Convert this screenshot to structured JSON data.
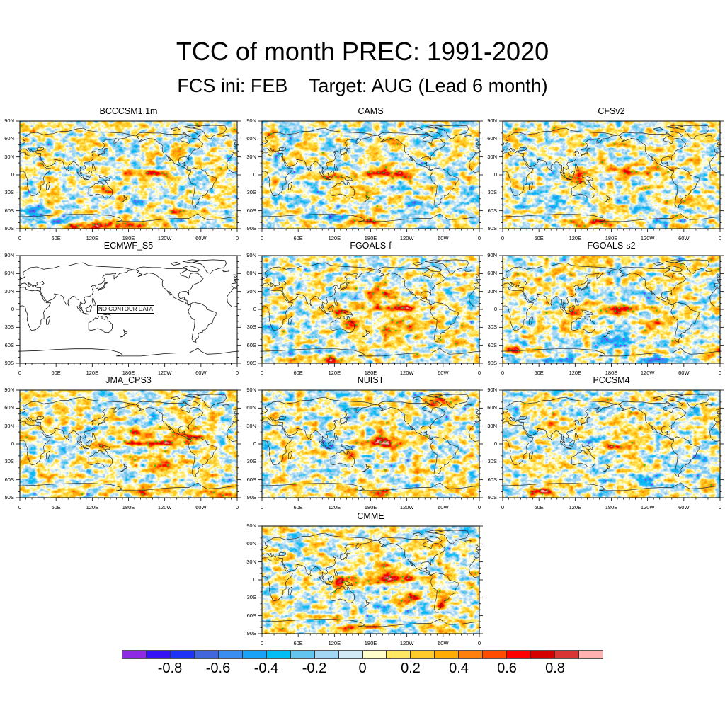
{
  "figure": {
    "title": "TCC of month PREC: 1991-2020",
    "subtitle": "FCS ini: FEB    Target: AUG (Lead 6 month)"
  },
  "chart_data": {
    "type": "heatmap",
    "title": "TCC of month PREC: 1991-2020",
    "subtitle": "FCS ini: FEB    Target: AUG (Lead 6 month)",
    "xlabel": "",
    "ylabel": "",
    "xlim": [
      0,
      360
    ],
    "ylim": [
      -90,
      90
    ],
    "x_ticks": [
      "0",
      "60E",
      "120E",
      "180E",
      "120W",
      "60W",
      "0"
    ],
    "x_tick_values": [
      0,
      60,
      120,
      180,
      240,
      300,
      360
    ],
    "y_ticks": [
      "90N",
      "60N",
      "30N",
      "0",
      "30S",
      "60S",
      "90S"
    ],
    "y_tick_values": [
      90,
      60,
      30,
      0,
      -30,
      -60,
      -90
    ],
    "grid": false,
    "colorbar": {
      "range": [
        -1.0,
        1.0
      ],
      "step": 0.1,
      "placement": "bottom",
      "colors": [
        "#8e2ae3",
        "#3613f5",
        "#1f33f7",
        "#4466dd",
        "#3a8ef0",
        "#1aa3f6",
        "#02bdf4",
        "#63c5ef",
        "#a3d6f2",
        "#d2eaf8",
        "#fffdca",
        "#fee863",
        "#fecb2a",
        "#ffac04",
        "#ff800c",
        "#ff4c02",
        "#fe0000",
        "#d40000",
        "#d93535",
        "#ffb1b1"
      ],
      "labels": [
        "-0.8",
        "-0.6",
        "-0.4",
        "-0.2",
        "0",
        "0.2",
        "0.4",
        "0.6",
        "0.8"
      ],
      "label_values": [
        -0.8,
        -0.6,
        -0.4,
        -0.2,
        0,
        0.2,
        0.4,
        0.6,
        0.8
      ]
    },
    "markers": {
      "positive_significant_color": "#1fc81f",
      "negative_significant_color": "#9b30ff"
    },
    "panels": [
      {
        "name": "BCCCSM1.1m",
        "no_data": false,
        "features": [
          {
            "lon": 205,
            "lat": 3,
            "value": 0.55,
            "dlon": 28,
            "dlat": 4
          },
          {
            "lon": 125,
            "lat": -85,
            "value": 0.65,
            "dlon": 35,
            "dlat": 5
          },
          {
            "lon": 200,
            "lat": -85,
            "value": 0.4,
            "dlon": 40,
            "dlat": 4
          },
          {
            "lon": 280,
            "lat": -62,
            "value": 0.4,
            "dlon": 25,
            "dlat": 6
          },
          {
            "lon": 150,
            "lat": -22,
            "value": 0.35,
            "dlon": 10,
            "dlat": 8
          },
          {
            "lon": 25,
            "lat": -60,
            "value": -0.5,
            "dlon": 15,
            "dlat": 6
          },
          {
            "lon": 195,
            "lat": -45,
            "value": -0.35,
            "dlon": 10,
            "dlat": 6
          },
          {
            "lon": 55,
            "lat": -78,
            "value": -0.35,
            "dlon": 20,
            "dlat": 4
          }
        ]
      },
      {
        "name": "CAMS",
        "no_data": false,
        "features": [
          {
            "lon": 212,
            "lat": 2,
            "value": 0.7,
            "dlon": 32,
            "dlat": 4
          },
          {
            "lon": 115,
            "lat": -2,
            "value": 0.45,
            "dlon": 18,
            "dlat": 5
          },
          {
            "lon": 175,
            "lat": -78,
            "value": 0.5,
            "dlon": 30,
            "dlat": 5
          },
          {
            "lon": 12,
            "lat": 68,
            "value": 0.5,
            "dlon": 8,
            "dlat": 5
          },
          {
            "lon": 250,
            "lat": -48,
            "value": -0.45,
            "dlon": 15,
            "dlat": 4
          },
          {
            "lon": 110,
            "lat": -72,
            "value": -0.4,
            "dlon": 30,
            "dlat": 4
          },
          {
            "lon": 200,
            "lat": -72,
            "value": -0.3,
            "dlon": 20,
            "dlat": 4
          }
        ]
      },
      {
        "name": "CFSv2",
        "no_data": false,
        "features": [
          {
            "lon": 195,
            "lat": 5,
            "value": 0.4,
            "dlon": 35,
            "dlat": 5
          },
          {
            "lon": 125,
            "lat": -5,
            "value": 0.55,
            "dlon": 10,
            "dlat": 6
          },
          {
            "lon": 165,
            "lat": -80,
            "value": 0.45,
            "dlon": 35,
            "dlat": 5
          },
          {
            "lon": 295,
            "lat": -42,
            "value": 0.4,
            "dlon": 18,
            "dlat": 6
          },
          {
            "lon": 220,
            "lat": 17,
            "value": 0.35,
            "dlon": 20,
            "dlat": 4
          },
          {
            "lon": 230,
            "lat": -55,
            "value": -0.35,
            "dlon": 15,
            "dlat": 5
          },
          {
            "lon": 100,
            "lat": -40,
            "value": -0.3,
            "dlon": 20,
            "dlat": 6
          }
        ]
      },
      {
        "name": "ECMWF_S5",
        "no_data": true,
        "message": "NO CONTOUR DATA",
        "features": []
      },
      {
        "name": "FGOALS-f",
        "no_data": false,
        "features": [
          {
            "lon": 225,
            "lat": 2,
            "value": 0.75,
            "dlon": 28,
            "dlat": 4
          },
          {
            "lon": 150,
            "lat": -25,
            "value": 0.5,
            "dlon": 8,
            "dlat": 7
          },
          {
            "lon": 100,
            "lat": -85,
            "value": 0.55,
            "dlon": 35,
            "dlat": 4
          },
          {
            "lon": 200,
            "lat": 22,
            "value": 0.4,
            "dlon": 18,
            "dlat": 10
          },
          {
            "lon": 125,
            "lat": -3,
            "value": 0.4,
            "dlon": 12,
            "dlat": 5
          },
          {
            "lon": 220,
            "lat": -30,
            "value": 0.3,
            "dlon": 30,
            "dlat": 10
          },
          {
            "lon": 60,
            "lat": -72,
            "value": -0.35,
            "dlon": 25,
            "dlat": 4
          }
        ]
      },
      {
        "name": "FGOALS-s2",
        "no_data": false,
        "features": [
          {
            "lon": 195,
            "lat": 0,
            "value": 0.55,
            "dlon": 22,
            "dlat": 6
          },
          {
            "lon": 125,
            "lat": -2,
            "value": 0.45,
            "dlon": 12,
            "dlat": 6
          },
          {
            "lon": 245,
            "lat": -22,
            "value": 0.45,
            "dlon": 12,
            "dlat": 5
          },
          {
            "lon": 25,
            "lat": -68,
            "value": 0.45,
            "dlon": 25,
            "dlat": 4
          },
          {
            "lon": 270,
            "lat": -84,
            "value": -0.5,
            "dlon": 25,
            "dlat": 4
          },
          {
            "lon": 100,
            "lat": -85,
            "value": -0.4,
            "dlon": 25,
            "dlat": 3
          },
          {
            "lon": 180,
            "lat": -50,
            "value": -0.3,
            "dlon": 25,
            "dlat": 6
          }
        ]
      },
      {
        "name": "JMA_CPS3",
        "no_data": false,
        "features": [
          {
            "lon": 222,
            "lat": 1,
            "value": 0.85,
            "dlon": 32,
            "dlat": 3
          },
          {
            "lon": 128,
            "lat": -3,
            "value": 0.6,
            "dlon": 9,
            "dlat": 5
          },
          {
            "lon": 200,
            "lat": 18,
            "value": 0.4,
            "dlon": 20,
            "dlat": 6
          },
          {
            "lon": 275,
            "lat": 12,
            "value": 0.35,
            "dlon": 30,
            "dlat": 7
          },
          {
            "lon": 190,
            "lat": -80,
            "value": 0.4,
            "dlon": 40,
            "dlat": 5
          },
          {
            "lon": 320,
            "lat": -80,
            "value": 0.35,
            "dlon": 25,
            "dlat": 5
          },
          {
            "lon": 240,
            "lat": -35,
            "value": 0.3,
            "dlon": 20,
            "dlat": 8
          }
        ]
      },
      {
        "name": "NUIST",
        "no_data": false,
        "features": [
          {
            "lon": 205,
            "lat": 2,
            "value": 0.75,
            "dlon": 28,
            "dlat": 5
          },
          {
            "lon": 195,
            "lat": 18,
            "value": 0.45,
            "dlon": 6,
            "dlat": 6
          },
          {
            "lon": 150,
            "lat": -20,
            "value": 0.35,
            "dlon": 10,
            "dlat": 8
          },
          {
            "lon": 300,
            "lat": 70,
            "value": 0.45,
            "dlon": 15,
            "dlat": 6
          },
          {
            "lon": 190,
            "lat": -80,
            "value": 0.45,
            "dlon": 30,
            "dlat": 5
          },
          {
            "lon": 65,
            "lat": -65,
            "value": 0.35,
            "dlon": 15,
            "dlat": 4
          },
          {
            "lon": 120,
            "lat": 0,
            "value": -0.35,
            "dlon": 15,
            "dlat": 8
          },
          {
            "lon": 240,
            "lat": -75,
            "value": -0.3,
            "dlon": 25,
            "dlat": 4
          }
        ]
      },
      {
        "name": "PCCSM4",
        "no_data": false,
        "features": [
          {
            "lon": 185,
            "lat": -5,
            "value": 0.45,
            "dlon": 22,
            "dlat": 3
          },
          {
            "lon": 65,
            "lat": -80,
            "value": 0.75,
            "dlon": 12,
            "dlat": 4
          },
          {
            "lon": 80,
            "lat": 42,
            "value": 0.4,
            "dlon": 7,
            "dlat": 5
          },
          {
            "lon": 132,
            "lat": 37,
            "value": 0.45,
            "dlon": 4,
            "dlat": 4
          },
          {
            "lon": 145,
            "lat": 5,
            "value": -0.45,
            "dlon": 12,
            "dlat": 6
          },
          {
            "lon": 330,
            "lat": -25,
            "value": -0.3,
            "dlon": 15,
            "dlat": 10
          },
          {
            "lon": 240,
            "lat": -60,
            "value": -0.35,
            "dlon": 20,
            "dlat": 5
          }
        ]
      },
      {
        "name": "CMME",
        "no_data": false,
        "features": [
          {
            "lon": 210,
            "lat": 1,
            "value": 0.75,
            "dlon": 32,
            "dlat": 5
          },
          {
            "lon": 200,
            "lat": 20,
            "value": 0.4,
            "dlon": 15,
            "dlat": 8
          },
          {
            "lon": 130,
            "lat": -5,
            "value": 0.5,
            "dlon": 15,
            "dlat": 6
          },
          {
            "lon": 150,
            "lat": -80,
            "value": 0.5,
            "dlon": 30,
            "dlat": 4
          },
          {
            "lon": 300,
            "lat": -37,
            "value": 0.45,
            "dlon": 8,
            "dlat": 8
          },
          {
            "lon": 245,
            "lat": -30,
            "value": 0.4,
            "dlon": 20,
            "dlat": 8
          },
          {
            "lon": 240,
            "lat": -55,
            "value": -0.3,
            "dlon": 20,
            "dlat": 6
          }
        ]
      }
    ]
  }
}
